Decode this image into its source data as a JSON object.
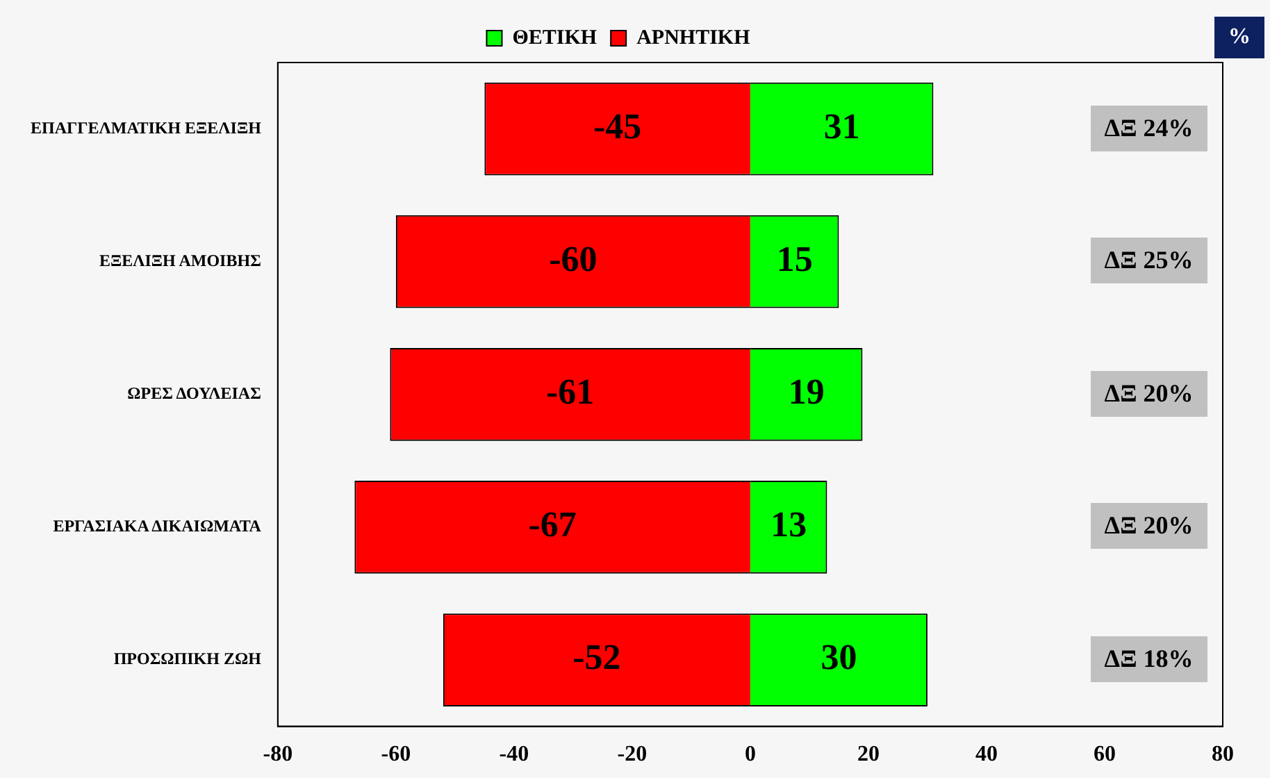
{
  "chart_data": {
    "type": "bar",
    "orientation": "horizontal",
    "stacked": true,
    "categories": [
      "ΕΠΑΓΓΕΛΜΑΤΙΚΗ ΕΞΕΛΙΞΗ",
      "ΕΞΕΛΙΞΗ ΑΜΟΙΒΗΣ",
      "ΩΡΕΣ ΔΟΥΛΕΙΑΣ",
      "ΕΡΓΑΣΙΑΚΑ ΔΙΚΑΙΩΜΑΤΑ",
      "ΠΡΟΣΩΠΙΚΗ ΖΩΗ"
    ],
    "series": [
      {
        "name": "ΘΕΤΙΚΗ",
        "color": "#00ff00",
        "values": [
          31,
          15,
          19,
          13,
          30
        ]
      },
      {
        "name": "ΑΡΝΗΤΙΚΗ",
        "color": "#ff0000",
        "values": [
          -45,
          -60,
          -61,
          -67,
          -52
        ]
      }
    ],
    "xlim": [
      -80,
      80
    ],
    "xticks": [
      -80,
      -60,
      -40,
      -20,
      0,
      20,
      40,
      60,
      80
    ],
    "data_labels": true,
    "legend": "top",
    "grid": false,
    "annotations": [
      "%",
      "ΔΞ 24%",
      "ΔΞ 25%",
      "ΔΞ 20%",
      "ΔΞ 20%",
      "ΔΞ 18%"
    ]
  }
}
